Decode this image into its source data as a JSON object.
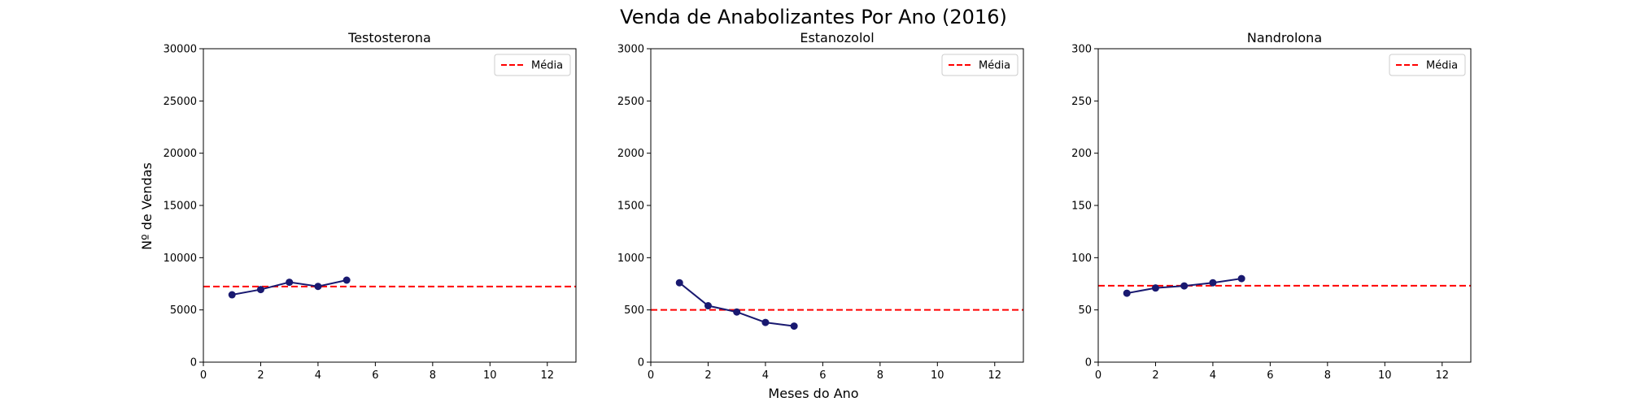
{
  "figure": {
    "title": "Venda de Anabolizantes Por Ano (2016)",
    "xlabel": "Meses do Ano",
    "ylabel": "Nº de Vendas"
  },
  "colors": {
    "series": "#191970",
    "mean_line": "#ff0000",
    "axes": "#000000",
    "legend_border": "#cccccc"
  },
  "chart_data": [
    {
      "type": "line",
      "title": "Testosterona",
      "x": [
        1,
        2,
        3,
        4,
        5
      ],
      "series": [
        {
          "values": [
            6450,
            6950,
            7650,
            7250,
            7850
          ]
        }
      ],
      "mean": 7240,
      "mean_label": "Média",
      "legend": "top-right",
      "xlim": [
        0,
        13
      ],
      "ylim": [
        0,
        30000
      ],
      "xticks": [
        0,
        2,
        4,
        6,
        8,
        10,
        12
      ],
      "yticks": [
        0,
        5000,
        10000,
        15000,
        20000,
        25000,
        30000
      ],
      "grid": false
    },
    {
      "type": "line",
      "title": "Estanozolol",
      "x": [
        1,
        2,
        3,
        4,
        5
      ],
      "series": [
        {
          "values": [
            760,
            540,
            480,
            380,
            345
          ]
        }
      ],
      "mean": 500,
      "mean_label": "Média",
      "legend": "top-right",
      "xlim": [
        0,
        13
      ],
      "ylim": [
        0,
        3000
      ],
      "xticks": [
        0,
        2,
        4,
        6,
        8,
        10,
        12
      ],
      "yticks": [
        0,
        500,
        1000,
        1500,
        2000,
        2500,
        3000
      ],
      "grid": false
    },
    {
      "type": "line",
      "title": "Nandrolona",
      "x": [
        1,
        2,
        3,
        4,
        5
      ],
      "series": [
        {
          "values": [
            66,
            71,
            73,
            76,
            80
          ]
        }
      ],
      "mean": 73.2,
      "mean_label": "Média",
      "legend": "top-right",
      "xlim": [
        0,
        13
      ],
      "ylim": [
        0,
        300
      ],
      "xticks": [
        0,
        2,
        4,
        6,
        8,
        10,
        12
      ],
      "yticks": [
        0,
        50,
        100,
        150,
        200,
        250,
        300
      ],
      "grid": false
    }
  ]
}
